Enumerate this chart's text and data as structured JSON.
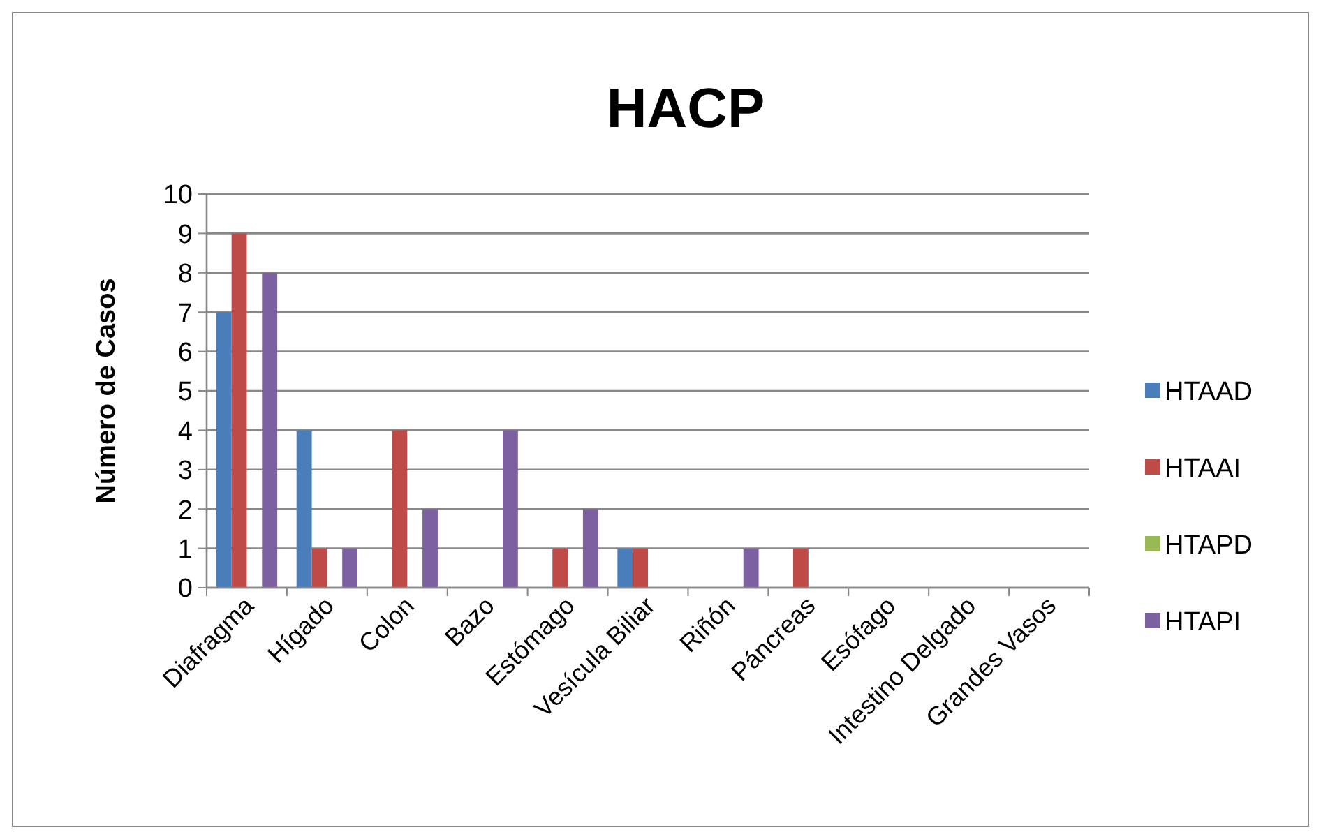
{
  "chart_data": {
    "type": "bar",
    "title": "HACP",
    "ylabel": "Número de Casos",
    "categories": [
      "Diafragma",
      "Hígado",
      "Colon",
      "Bazo",
      "Estómago",
      "Vesícula Biliar",
      "Riñón",
      "Páncreas",
      "Esófago",
      "Intestino Delgado",
      "Grandes Vasos"
    ],
    "series": [
      {
        "name": "HTAAD",
        "color": "#4a7ebb",
        "values": [
          7,
          4,
          0,
          0,
          0,
          1,
          0,
          0,
          0,
          0,
          0
        ]
      },
      {
        "name": "HTAAI",
        "color": "#be4b48",
        "values": [
          9,
          1,
          4,
          0,
          1,
          1,
          0,
          1,
          0,
          0,
          0
        ]
      },
      {
        "name": "HTAPD",
        "color": "#98b954",
        "values": [
          0,
          0,
          0,
          0,
          0,
          0,
          0,
          0,
          0,
          0,
          0
        ]
      },
      {
        "name": "HTAPI",
        "color": "#7d60a0",
        "values": [
          8,
          1,
          2,
          4,
          2,
          0,
          1,
          0,
          0,
          0,
          0
        ]
      }
    ],
    "ylim": [
      0,
      10
    ],
    "yticks": [
      0,
      1,
      2,
      3,
      4,
      5,
      6,
      7,
      8,
      9,
      10
    ],
    "grid": "y",
    "legend": "right"
  }
}
